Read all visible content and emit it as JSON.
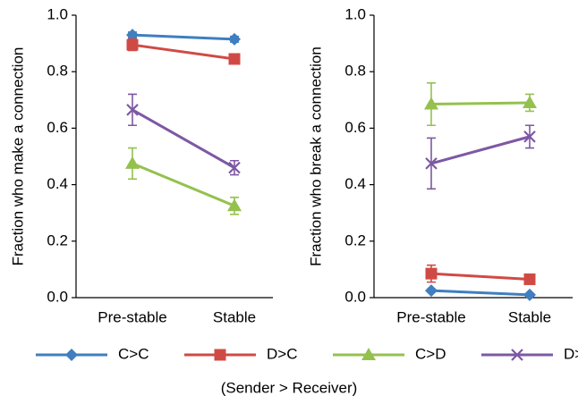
{
  "chart_data": [
    {
      "type": "line",
      "y_label": "Fraction who make a connection",
      "categories": [
        "Pre-stable",
        "Stable"
      ],
      "ylim": [
        0,
        1
      ],
      "yticks": [
        {
          "value": 0,
          "label": "0.0"
        },
        0.2,
        0.4,
        0.6,
        0.8,
        {
          "value": 1,
          "label": "1.0"
        }
      ],
      "legend_title": "(Sender > Receiver)",
      "series": [
        {
          "name": "C>C",
          "color": "#3f7fbf",
          "marker": "diamond",
          "values": [
            0.93,
            0.915
          ],
          "errors": [
            0.01,
            0.01
          ]
        },
        {
          "name": "D>C",
          "color": "#d04a45",
          "marker": "square",
          "values": [
            0.895,
            0.845
          ],
          "errors": [
            0.02,
            0.01
          ]
        },
        {
          "name": "C>D",
          "color": "#94c14e",
          "marker": "triangle",
          "values": [
            0.475,
            0.325
          ],
          "errors": [
            0.055,
            0.03
          ]
        },
        {
          "name": "D>D",
          "color": "#7d58a3",
          "marker": "x",
          "values": [
            0.665,
            0.46
          ],
          "errors": [
            0.055,
            0.025
          ]
        }
      ]
    },
    {
      "type": "line",
      "y_label": "Fraction who break a connection",
      "categories": [
        "Pre-stable",
        "Stable"
      ],
      "ylim": [
        0,
        1
      ],
      "yticks": [
        {
          "value": 0,
          "label": "0.0"
        },
        0.2,
        0.4,
        0.6,
        0.8,
        {
          "value": 1,
          "label": "1.0"
        }
      ],
      "series": [
        {
          "color": "#3f7fbf",
          "marker": "diamond",
          "values": [
            0.025,
            0.01
          ],
          "errors": [
            0.005,
            0.005
          ]
        },
        {
          "color": "#d04a45",
          "marker": "square",
          "values": [
            0.085,
            0.065
          ],
          "errors": [
            0.03,
            0.01
          ]
        },
        {
          "color": "#94c14e",
          "marker": "triangle",
          "values": [
            0.685,
            0.69
          ],
          "errors": [
            0.075,
            0.03
          ]
        },
        {
          "color": "#7d58a3",
          "marker": "x",
          "values": [
            0.475,
            0.57
          ],
          "errors": [
            0.09,
            0.04
          ]
        }
      ]
    }
  ]
}
